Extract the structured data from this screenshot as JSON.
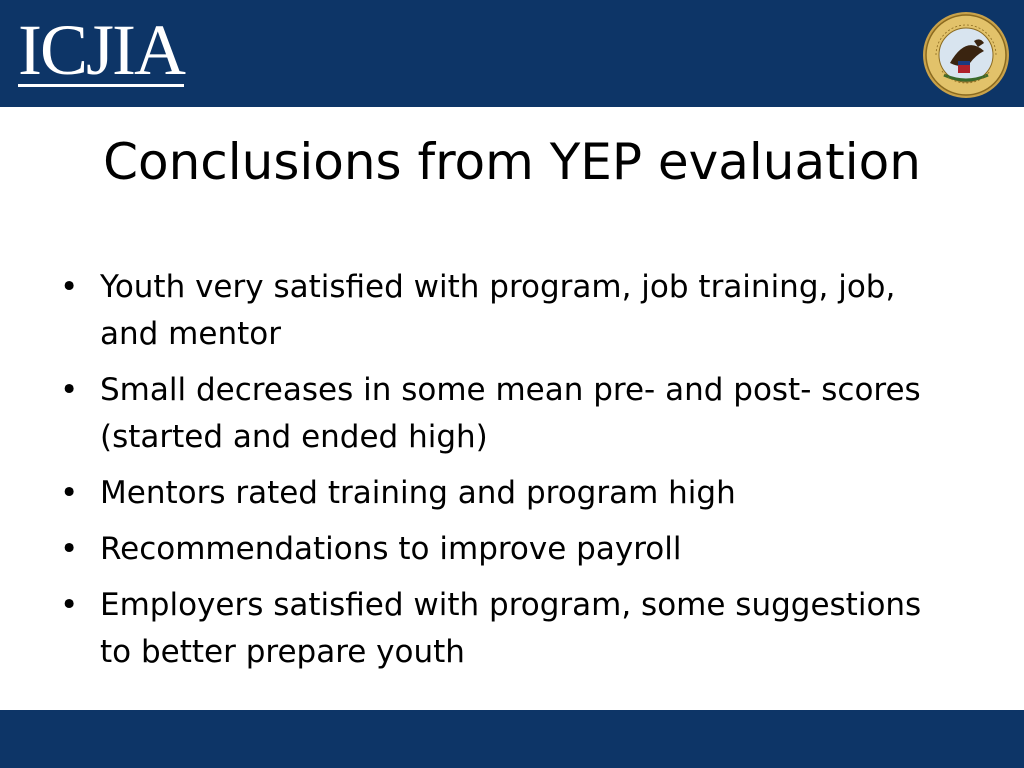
{
  "header": {
    "logo_text": "ICJIA",
    "seal_icon": "illinois-state-seal-icon",
    "background_color": "#0d3567"
  },
  "slide": {
    "title": "Conclusions from YEP evaluation",
    "bullets": [
      "Youth very satisfied with program, job training, job, and mentor",
      "Small decreases in some mean pre- and post- scores (started and ended high)",
      "Mentors rated training and program high",
      "Recommendations to improve payroll",
      "Employers satisfied with program, some suggestions to better prepare youth"
    ]
  },
  "footer": {
    "background_color": "#0d3567"
  }
}
